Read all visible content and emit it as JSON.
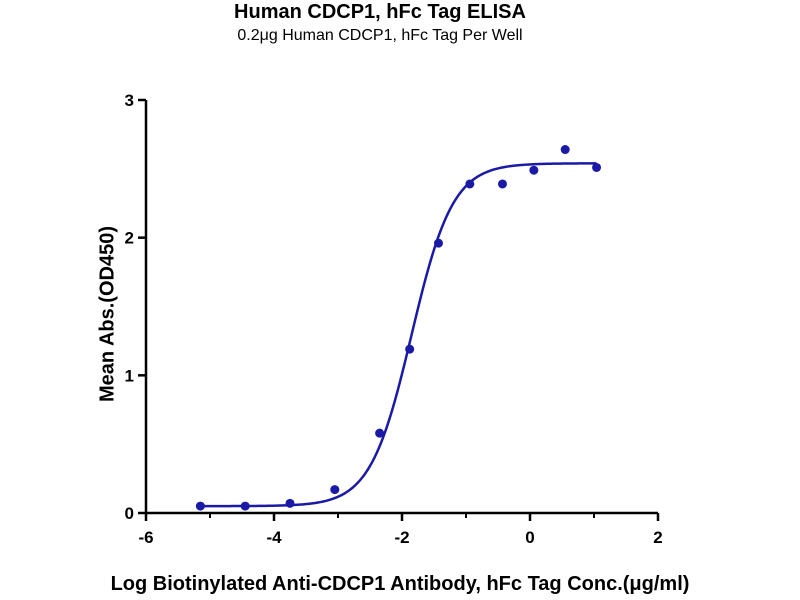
{
  "chart_data": {
    "type": "scatter",
    "title": "Human CDCP1, hFc Tag ELISA",
    "subtitle": "0.2μg Human CDCP1, hFc Tag Per Well",
    "xlabel": "Log Biotinylated Anti-CDCP1 Antibody, hFc Tag Conc.(μg/ml)",
    "ylabel": "Mean Abs.(OD450)",
    "xlim": [
      -6,
      2
    ],
    "ylim": [
      0,
      3
    ],
    "xticks": [
      "-6",
      "-4",
      "-2",
      "0",
      "2"
    ],
    "yticks": [
      "0",
      "1",
      "2",
      "3"
    ],
    "grid": false,
    "legend": "none",
    "series": [
      {
        "points": [
          {
            "x": -5.15,
            "y": 0.05
          },
          {
            "x": -4.45,
            "y": 0.05
          },
          {
            "x": -3.75,
            "y": 0.07
          },
          {
            "x": -3.05,
            "y": 0.17
          },
          {
            "x": -2.35,
            "y": 0.58
          },
          {
            "x": -1.88,
            "y": 1.19
          },
          {
            "x": -1.43,
            "y": 1.96
          },
          {
            "x": -0.94,
            "y": 2.39
          },
          {
            "x": -0.43,
            "y": 2.39
          },
          {
            "x": 0.06,
            "y": 2.49
          },
          {
            "x": 0.55,
            "y": 2.64
          },
          {
            "x": 1.04,
            "y": 2.51
          }
        ],
        "fit": {
          "model": "4PL",
          "bottom": 0.05,
          "top": 2.54,
          "logEC50": -1.85,
          "hillslope": 1.35
        }
      }
    ],
    "colors": {
      "series": "#1a1aa6",
      "axis": "#000000"
    }
  }
}
